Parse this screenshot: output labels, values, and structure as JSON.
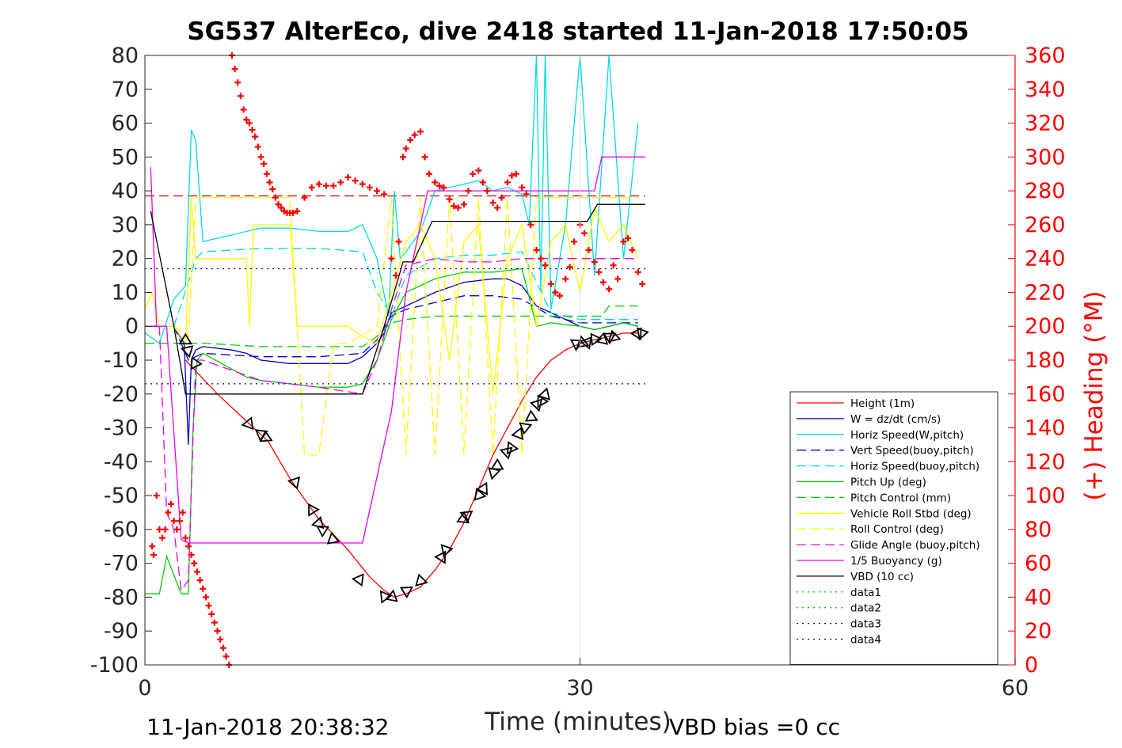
{
  "chart_data": {
    "type": "line",
    "title": "SG537 AlterEco, dive 2418 started 11-Jan-2018 17:50:05",
    "xlabel": "Time (minutes)",
    "ylabel": "",
    "ylabel_right": "(+) Heading (°M)",
    "xlim": [
      0,
      60
    ],
    "ylim": [
      -100,
      80
    ],
    "ylim_right": [
      0,
      360
    ],
    "x_ticks": [
      0,
      30,
      60
    ],
    "y_ticks": [
      80,
      70,
      60,
      50,
      40,
      30,
      20,
      10,
      0,
      -10,
      -20,
      -30,
      -40,
      -50,
      -60,
      -70,
      -80,
      -90,
      -100
    ],
    "y_ticks_right": [
      360,
      340,
      320,
      300,
      280,
      260,
      240,
      220,
      200,
      180,
      160,
      140,
      120,
      100,
      80,
      60,
      40,
      20,
      0
    ],
    "grid": "x-only",
    "legend_position": "right-lower",
    "footer_left": "11-Jan-2018 20:38:32",
    "footer_right": "VBD bias =0 cc",
    "series": [
      {
        "name": "Height (1m)",
        "color": "#ff0000",
        "style": "solid",
        "x": [
          2.8,
          5,
          7,
          8.5,
          10,
          12,
          14,
          15.5,
          16.5,
          17.2,
          18,
          19,
          20,
          21,
          22,
          23,
          24,
          25,
          26,
          27,
          28,
          29,
          30,
          31,
          32,
          33,
          34
        ],
        "y": [
          -10,
          -20,
          -28,
          -34,
          -45,
          -57,
          -66,
          -74,
          -78,
          -80,
          -79,
          -77,
          -72,
          -66,
          -58,
          -48,
          -38,
          -30,
          -22,
          -15,
          -10,
          -7,
          -5,
          -4,
          -3,
          -2,
          -2
        ]
      },
      {
        "name": "W = dz/dt (cm/s)",
        "color": "#0000cc",
        "style": "solid",
        "x": [
          0,
          1,
          2,
          2.7,
          3.0,
          3.2,
          3.5,
          4,
          6,
          7,
          8,
          10,
          12,
          14,
          15,
          16,
          16.5,
          17,
          18,
          19,
          20,
          22,
          24,
          25,
          26,
          27,
          28,
          29,
          30,
          31,
          32,
          33,
          34
        ],
        "y": [
          0,
          0,
          0,
          -5,
          -35,
          -10,
          -7,
          -6,
          -7,
          -8,
          -10,
          -11,
          -11,
          -11,
          -9,
          -5,
          -2,
          4,
          6,
          8,
          10,
          13,
          14,
          14,
          12,
          6,
          4,
          2,
          0,
          -1,
          0,
          1,
          0
        ]
      },
      {
        "name": "Horiz Speed(W,pitch)",
        "color": "#00dddd",
        "style": "solid",
        "x": [
          0,
          1,
          2,
          2.8,
          3.2,
          3.5,
          4,
          5,
          7,
          8,
          10,
          12,
          14,
          15,
          16,
          16.8,
          17.2,
          17.6,
          18,
          19,
          20,
          21,
          22,
          23,
          24,
          25,
          26,
          26.5,
          27,
          27.3,
          27.6,
          28,
          29,
          30,
          31,
          32,
          33,
          34
        ],
        "y": [
          -2,
          -5,
          8,
          12,
          58,
          55,
          25,
          26,
          28,
          29,
          29,
          28,
          28,
          30,
          20,
          3,
          40,
          20,
          22,
          28,
          40,
          41,
          42,
          43,
          40,
          41,
          39,
          30,
          80,
          10,
          80,
          5,
          30,
          80,
          15,
          80,
          20,
          60
        ]
      },
      {
        "name": "Vert Speed(buoy,pitch)",
        "color": "#0000cc",
        "style": "dashed",
        "x": [
          0,
          2,
          3,
          3.5,
          4,
          8,
          12,
          15,
          16,
          17,
          18,
          20,
          22,
          24,
          26,
          28,
          30,
          32,
          34
        ],
        "y": [
          0,
          0,
          -10,
          -9,
          -8,
          -9,
          -9,
          -8,
          -4,
          3,
          5,
          7,
          9,
          9,
          8,
          3,
          1,
          1,
          1
        ]
      },
      {
        "name": "Horiz Speed(buoy,pitch)",
        "color": "#00dddd",
        "style": "dashed",
        "x": [
          0,
          2,
          3,
          3.5,
          4,
          8,
          12,
          15,
          16,
          17,
          18,
          20,
          22,
          24,
          26,
          28,
          30,
          32,
          34
        ],
        "y": [
          0,
          0,
          13,
          20,
          22,
          23,
          23,
          22,
          10,
          3,
          15,
          20,
          21,
          21,
          22,
          4,
          2,
          2,
          2
        ]
      },
      {
        "name": "Pitch Up (deg)",
        "color": "#00cc00",
        "style": "solid",
        "x": [
          0,
          1,
          1.5,
          2.5,
          3.0,
          3.3,
          3.6,
          4,
          7,
          8,
          10,
          12,
          14,
          15,
          16,
          17,
          18,
          20,
          22,
          24,
          26,
          27,
          28,
          30,
          31,
          32,
          33,
          34
        ],
        "y": [
          -79,
          -79,
          -68,
          -79,
          -79,
          -32,
          -10,
          -8,
          -15,
          -16,
          -17,
          -18,
          -18,
          -17,
          -10,
          2,
          10,
          14,
          16,
          16,
          17,
          0,
          1,
          0,
          -1,
          0,
          1,
          0
        ]
      },
      {
        "name": "Pitch Control (mm)",
        "color": "#00cc00",
        "style": "dashed",
        "x": [
          0,
          2,
          3,
          4,
          8,
          12,
          15,
          16,
          17,
          18,
          20,
          24,
          27,
          30,
          31.5,
          32,
          34
        ],
        "y": [
          -5,
          -5,
          -5,
          -5,
          -6,
          -6,
          -6,
          -3,
          1,
          2,
          3,
          3,
          3,
          3,
          3,
          6,
          6
        ]
      },
      {
        "name": "Vehicle Roll Stbd (deg)",
        "color": "#ffff00",
        "style": "solid",
        "x": [
          0,
          0.5,
          1,
          2,
          2.8,
          3.2,
          3.5,
          4,
          7,
          7.2,
          7.5,
          8,
          10,
          10.5,
          11,
          12,
          14,
          15,
          16,
          17,
          18,
          19,
          20,
          21,
          22,
          23,
          24,
          25,
          26,
          27,
          28,
          29,
          30,
          31,
          32,
          33,
          34
        ],
        "y": [
          5,
          10,
          0,
          0,
          -5,
          38,
          20,
          20,
          20,
          0,
          30,
          30,
          30,
          0,
          0,
          0,
          0,
          -3,
          -5,
          10,
          25,
          30,
          20,
          -10,
          25,
          30,
          -20,
          20,
          30,
          0,
          25,
          30,
          10,
          35,
          25,
          30,
          20
        ]
      },
      {
        "name": "Roll Control (deg)",
        "color": "#ffff00",
        "style": "dashed",
        "x": [
          0,
          2,
          3,
          3.5,
          4,
          7,
          8,
          10,
          11,
          12,
          13,
          14,
          16,
          17,
          18,
          19,
          20,
          21,
          22,
          23,
          24,
          25,
          26,
          27,
          28,
          30,
          32,
          34
        ],
        "y": [
          0,
          0,
          -3,
          38,
          38,
          38,
          38,
          38,
          -38,
          -38,
          -5,
          -5,
          0,
          38,
          -38,
          38,
          -38,
          38,
          -38,
          38,
          -38,
          38,
          -38,
          38,
          38,
          38,
          38,
          38
        ]
      },
      {
        "name": "Glide Angle (buoy,pitch)",
        "color": "#ee00ee",
        "style": "dashed",
        "x": [
          0,
          1,
          1.5,
          2,
          2.5,
          3,
          3.5,
          4,
          8,
          12,
          15,
          16,
          17,
          18,
          20,
          22,
          24,
          26,
          28,
          30,
          32,
          34
        ],
        "y": [
          0,
          0,
          -55,
          -60,
          -78,
          -75,
          -10,
          -10,
          -16,
          -18,
          -20,
          -10,
          5,
          18,
          20,
          19,
          19,
          20,
          20,
          20,
          20,
          20
        ]
      },
      {
        "name": "1/5 Buoyancy (g)",
        "color": "#ee00ee",
        "style": "solid",
        "x": [
          0.4,
          0.8,
          1.5,
          2.5,
          3.0,
          15.0,
          17.0,
          18.0,
          19.5,
          31.0,
          31.5,
          34.5
        ],
        "y": [
          47,
          0,
          0,
          -63,
          -64,
          -64,
          -25,
          10,
          40,
          40,
          50,
          50
        ]
      },
      {
        "name": "VBD (10 cc)",
        "color": "#000000",
        "style": "solid",
        "x": [
          0.4,
          2.0,
          2.8,
          3.0,
          15.0,
          16.5,
          17.8,
          18.5,
          19.8,
          30.5,
          31.2,
          34.5
        ],
        "y": [
          34,
          0,
          -20,
          -20,
          -20,
          0,
          19,
          19,
          31,
          31,
          36,
          36
        ]
      },
      {
        "name": "data1",
        "color": "#00cc00",
        "style": "dotted",
        "x": [],
        "y": []
      },
      {
        "name": "data2",
        "color": "#00cc00",
        "style": "dotted",
        "x": [],
        "y": []
      },
      {
        "name": "data3",
        "color": "#0000aa",
        "style": "dotted",
        "x": [
          0,
          34.5
        ],
        "y": [
          17,
          17
        ]
      },
      {
        "name": "data4",
        "color": "#0000aa",
        "style": "dotted",
        "x": [
          0,
          34.5
        ],
        "y": [
          -17,
          -17
        ]
      }
    ],
    "reference_line": {
      "color": "#cc0000",
      "style": "dashed",
      "y": 38.5,
      "x": [
        0,
        34.5
      ]
    },
    "heading_markers": {
      "color": "#ff0000",
      "axis": "right",
      "x": [
        0.5,
        0.6,
        0.8,
        1.0,
        1.2,
        1.4,
        1.6,
        1.8,
        2.0,
        2.2,
        2.4,
        2.6,
        2.8,
        3.0,
        3.2,
        3.4,
        3.6,
        3.8,
        4.0,
        4.2,
        4.4,
        4.6,
        4.8,
        5.0,
        5.2,
        5.4,
        5.6,
        5.8,
        6.0,
        6.2,
        6.4,
        6.6,
        6.8,
        7.0,
        7.2,
        7.4,
        7.6,
        7.8,
        8.0,
        8.2,
        8.4,
        8.6,
        8.8,
        9.0,
        9.2,
        9.4,
        9.6,
        9.8,
        10.0,
        10.2,
        10.5,
        11.0,
        11.5,
        12.0,
        12.5,
        13.0,
        13.5,
        14.0,
        14.5,
        15.0,
        15.5,
        16.0,
        16.5,
        17.0,
        17.3,
        17.5,
        17.8,
        18.0,
        18.3,
        18.6,
        19.0,
        19.3,
        19.6,
        20.0,
        20.3,
        20.6,
        21.0,
        21.3,
        21.6,
        22.0,
        22.3,
        22.6,
        23.0,
        23.3,
        23.6,
        24.0,
        24.3,
        24.6,
        25.0,
        25.3,
        25.6,
        26.0,
        26.3,
        26.6,
        27.0,
        27.3,
        27.6,
        28.0,
        28.3,
        28.6,
        29.0,
        29.3,
        29.6,
        30.0,
        30.3,
        30.6,
        31.0,
        31.3,
        31.6,
        32.0,
        32.3,
        32.6,
        33.0,
        33.3,
        33.6,
        34.0,
        34.3
      ],
      "y": [
        70,
        65,
        100,
        80,
        75,
        80,
        90,
        95,
        85,
        80,
        85,
        90,
        75,
        70,
        65,
        60,
        55,
        50,
        45,
        40,
        35,
        30,
        25,
        20,
        15,
        10,
        5,
        0,
        360,
        352,
        344,
        336,
        328,
        322,
        320,
        316,
        312,
        306,
        300,
        296,
        290,
        285,
        281,
        276,
        272,
        270,
        268,
        267,
        267,
        267,
        268,
        276,
        282,
        284,
        283,
        283,
        285,
        288,
        286,
        284,
        282,
        280,
        278,
        240,
        230,
        250,
        300,
        305,
        310,
        313,
        315,
        300,
        290,
        285,
        283,
        282,
        275,
        271,
        270,
        272,
        280,
        290,
        292,
        285,
        280,
        273,
        270,
        276,
        285,
        289,
        290,
        282,
        278,
        260,
        245,
        240,
        236,
        225,
        220,
        218,
        228,
        235,
        250,
        260,
        255,
        245,
        238,
        232,
        226,
        222,
        236,
        228,
        250,
        252,
        245,
        232,
        225
      ]
    },
    "triangle_markers": {
      "color": "#000000",
      "x": [
        2.8,
        3.0,
        3.5,
        7.2,
        8.0,
        8.3,
        10.3,
        11.5,
        12.0,
        12.3,
        13.0,
        14.8,
        16.5,
        17.0,
        18.0,
        19.0,
        20.5,
        20.8,
        22.0,
        22.2,
        23.0,
        23.3,
        24.0,
        24.3,
        25.0,
        25.3,
        25.8,
        26.2,
        26.6,
        27.0,
        27.3,
        27.6,
        29.8,
        30.2,
        30.5,
        31.0,
        31.5,
        32.0,
        32.3,
        34.0,
        34.3
      ],
      "y": [
        -4,
        -7,
        -11,
        -29,
        -32,
        -33,
        -46,
        -54,
        -58,
        -60,
        -63,
        -75,
        -80,
        -80,
        -78,
        -75,
        -68,
        -66,
        -57,
        -56,
        -50,
        -48,
        -43,
        -41,
        -37,
        -36,
        -32,
        -30,
        -27,
        -23,
        -22,
        -20,
        -5,
        -5,
        -5,
        -4,
        -4,
        -3,
        -3,
        -2,
        -2
      ]
    }
  }
}
